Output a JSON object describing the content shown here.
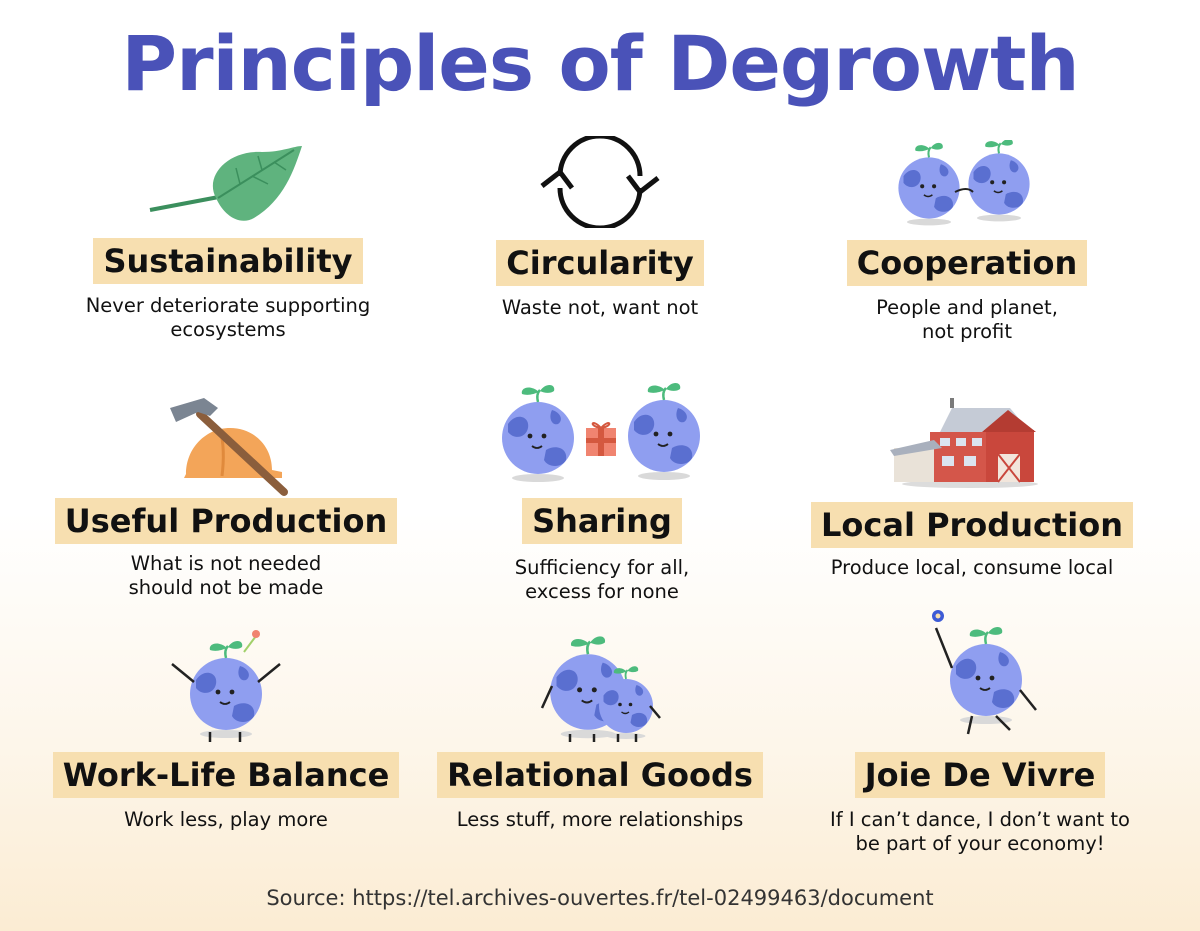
{
  "title": "Principles of Degrowth",
  "principles": [
    {
      "label": "Sustainability",
      "desc": "Never deteriorate supporting\necosystems",
      "icon": "leaf-icon"
    },
    {
      "label": "Circularity",
      "desc": "Waste not, want not",
      "icon": "cycle-arrows-icon"
    },
    {
      "label": "Cooperation",
      "desc": "People and planet,\nnot profit",
      "icon": "cooperating-planets-icon"
    },
    {
      "label": "Useful Production",
      "desc": "What is not needed\nshould not be made",
      "icon": "hammer-hardhat-icon"
    },
    {
      "label": "Sharing",
      "desc": "Sufficiency for all,\nexcess for none",
      "icon": "gift-sharing-planets-icon"
    },
    {
      "label": "Local Production",
      "desc": "Produce local, consume local",
      "icon": "barn-icon"
    },
    {
      "label": "Work-Life Balance",
      "desc": "Work less, play more",
      "icon": "relaxed-planet-icon"
    },
    {
      "label": "Relational Goods",
      "desc": "Less stuff, more relationships",
      "icon": "hugging-planets-icon"
    },
    {
      "label": "Joie De Vivre",
      "desc": "If I can’t dance, I don’t want to\nbe part of your economy!",
      "icon": "dancing-planet-icon"
    }
  ],
  "source": "Source: https://tel.archives-ouvertes.fr/tel-02499463/document",
  "colors": {
    "title": "#4a52b8",
    "label_bg": "#f7dfb0",
    "planet": "#8f9ef0",
    "planet_land": "#5a6fd0",
    "sprout": "#4dbb7d"
  }
}
